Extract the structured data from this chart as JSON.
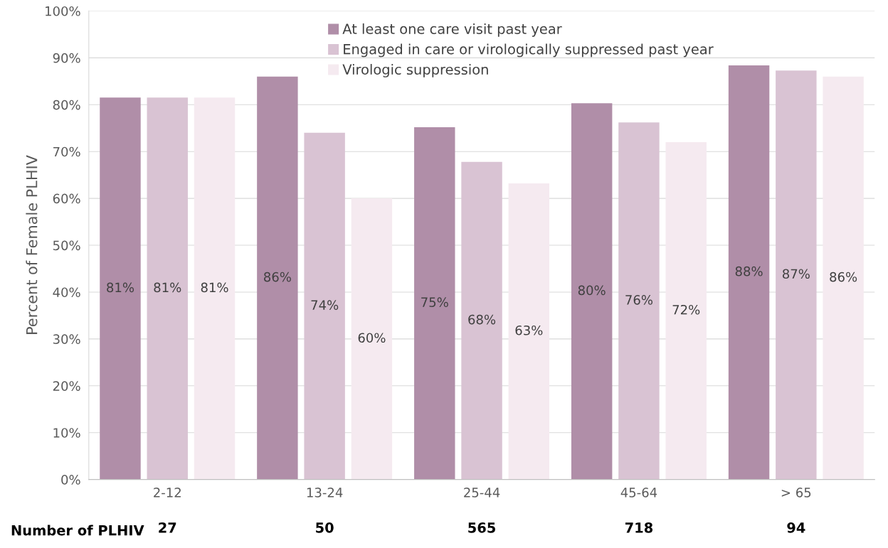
{
  "chart_data": {
    "type": "bar",
    "ylabel": "Percent of Female PLHIV",
    "categories": [
      "2-12",
      "13-24",
      "25-44",
      "45-64",
      "> 65"
    ],
    "series": [
      {
        "name": "At least one care visit past year",
        "color": "#b08ea8",
        "values": [
          81.5,
          86,
          75.2,
          80.3,
          88.4
        ],
        "value_labels": [
          "81%",
          "86%",
          "75%",
          "80%",
          "88%"
        ]
      },
      {
        "name": "Engaged in care or virologically suppressed past year",
        "color": "#d9c3d3",
        "values": [
          81.5,
          74,
          67.8,
          76.2,
          87.3
        ],
        "value_labels": [
          "81%",
          "74%",
          "68%",
          "76%",
          "87%"
        ]
      },
      {
        "name": "Virologic suppression",
        "color": "#f5eaf0",
        "values": [
          81.5,
          60,
          63.2,
          72,
          86
        ],
        "value_labels": [
          "81%",
          "60%",
          "63%",
          "72%",
          "86%"
        ]
      }
    ],
    "ylim": [
      0,
      100
    ],
    "yticks": [
      {
        "value": 0,
        "label": "0%"
      },
      {
        "value": 10,
        "label": "10%"
      },
      {
        "value": 20,
        "label": "20%"
      },
      {
        "value": 30,
        "label": "30%"
      },
      {
        "value": 40,
        "label": "40%"
      },
      {
        "value": 50,
        "label": "50%"
      },
      {
        "value": 60,
        "label": "60%"
      },
      {
        "value": 70,
        "label": "70%"
      },
      {
        "value": 80,
        "label": "80%"
      },
      {
        "value": 90,
        "label": "90%"
      },
      {
        "value": 100,
        "label": "100%"
      }
    ],
    "grid": "y",
    "legend": "top",
    "annotations": [
      "Number of PLHIV",
      "27",
      "50",
      "565",
      "718",
      "94"
    ]
  }
}
